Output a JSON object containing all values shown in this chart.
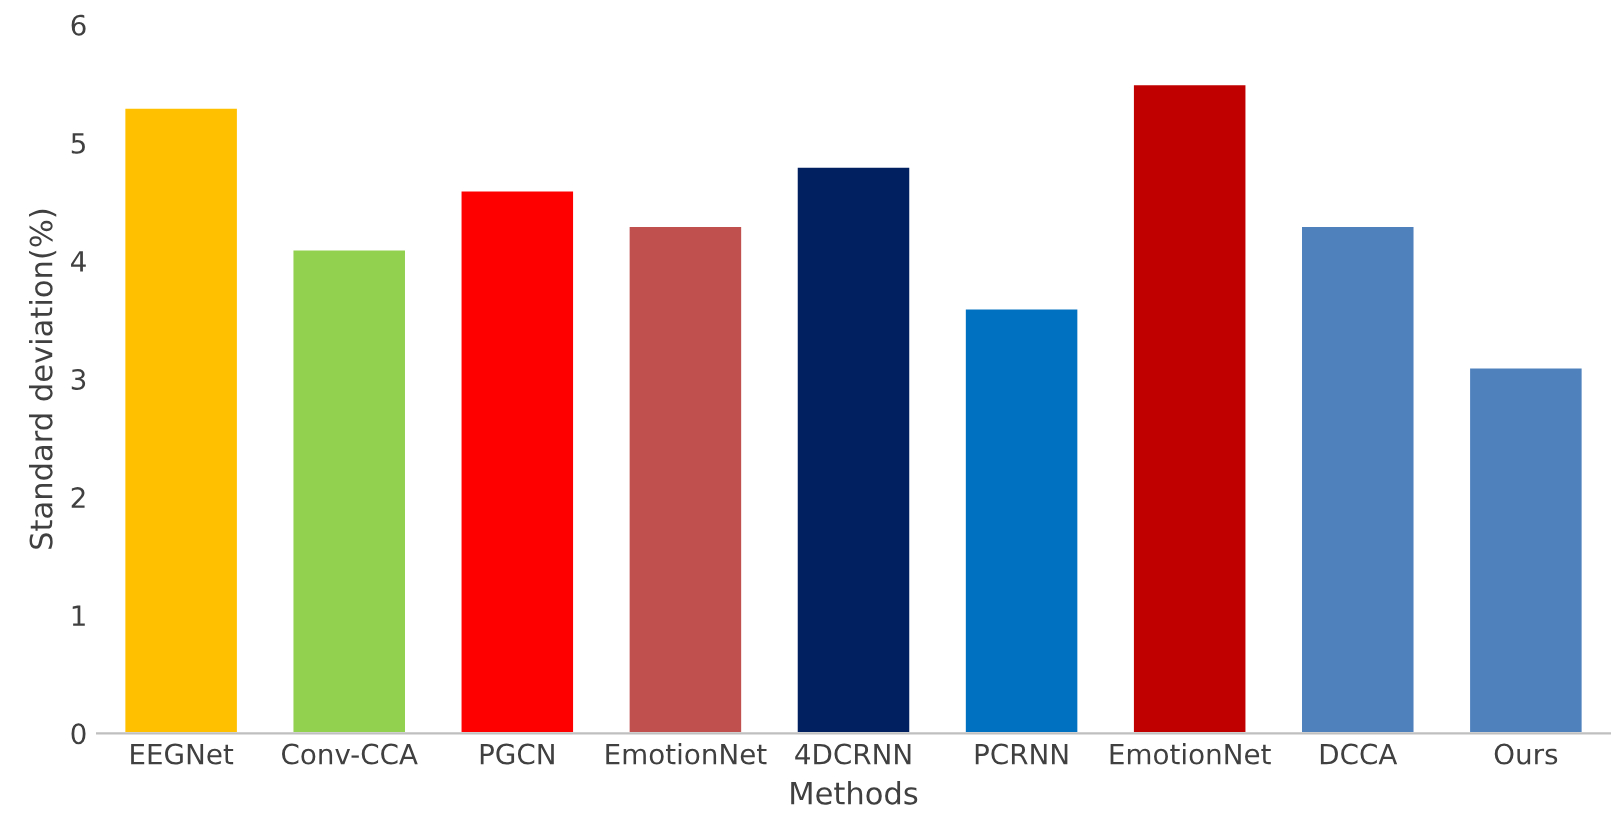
{
  "chart_data": {
    "type": "bar",
    "xlabel": "Methods",
    "ylabel": "Standard deviation(%)",
    "categories": [
      "EEGNet",
      "Conv-CCA",
      "PGCN",
      "EmotionNet",
      "4DCRNN",
      "PCRNN",
      "EmotionNet",
      "DCCA",
      "Ours"
    ],
    "values": [
      5.3,
      4.1,
      4.6,
      4.3,
      4.8,
      3.6,
      5.5,
      4.3,
      3.1
    ],
    "colors": [
      "#ffc000",
      "#92d050",
      "#ff0000",
      "#c0504d",
      "#002060",
      "#0070c0",
      "#c00000",
      "#4f81bd",
      "#4f81bd"
    ],
    "ylim": [
      0,
      6
    ],
    "yticks": [
      0,
      1,
      2,
      3,
      4,
      5,
      6
    ],
    "grid": false,
    "legend": false
  }
}
